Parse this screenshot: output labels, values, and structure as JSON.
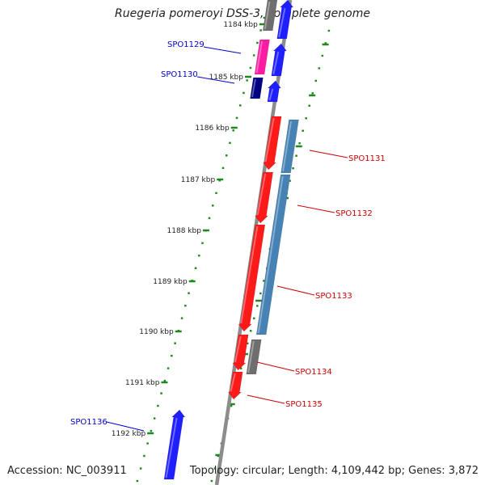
{
  "title": "Ruegeria pomeroyi DSS-3, complete genome",
  "footer": {
    "accession": "Accession: NC_003911",
    "summary": "Topology: circular; Length: 4,109,442 bp; Genes: 3,872"
  },
  "colors": {
    "backbone": "#8c8c8c",
    "tick": "#1e8a1e",
    "forward_gene": "#1f1fff",
    "reverse_gene": "#ff1a1a",
    "other_gene": "#6e6e6e",
    "pink_gene": "#ff1aa3",
    "navy_gene": "#000080",
    "steelblue_gene": "#4682b4",
    "label_forward": "#0000cc",
    "label_reverse": "#cc0000"
  },
  "scale": {
    "ticks": [
      "1184 kbp",
      "1185 kbp",
      "1186 kbp",
      "1187 kbp",
      "1188 kbp",
      "1189 kbp",
      "1190 kbp",
      "1191 kbp",
      "1192 kbp"
    ]
  },
  "gene_labels": [
    {
      "name": "SPO1129",
      "strand": "forward"
    },
    {
      "name": "SPO1130",
      "strand": "forward"
    },
    {
      "name": "SPO1131",
      "strand": "reverse"
    },
    {
      "name": "SPO1132",
      "strand": "reverse"
    },
    {
      "name": "SPO1133",
      "strand": "reverse"
    },
    {
      "name": "SPO1134",
      "strand": "reverse"
    },
    {
      "name": "SPO1135",
      "strand": "reverse"
    },
    {
      "name": "SPO1136",
      "strand": "forward"
    }
  ],
  "icons": {
    "gene_arrow": "arrow-shape",
    "tick_mark": "dash"
  }
}
